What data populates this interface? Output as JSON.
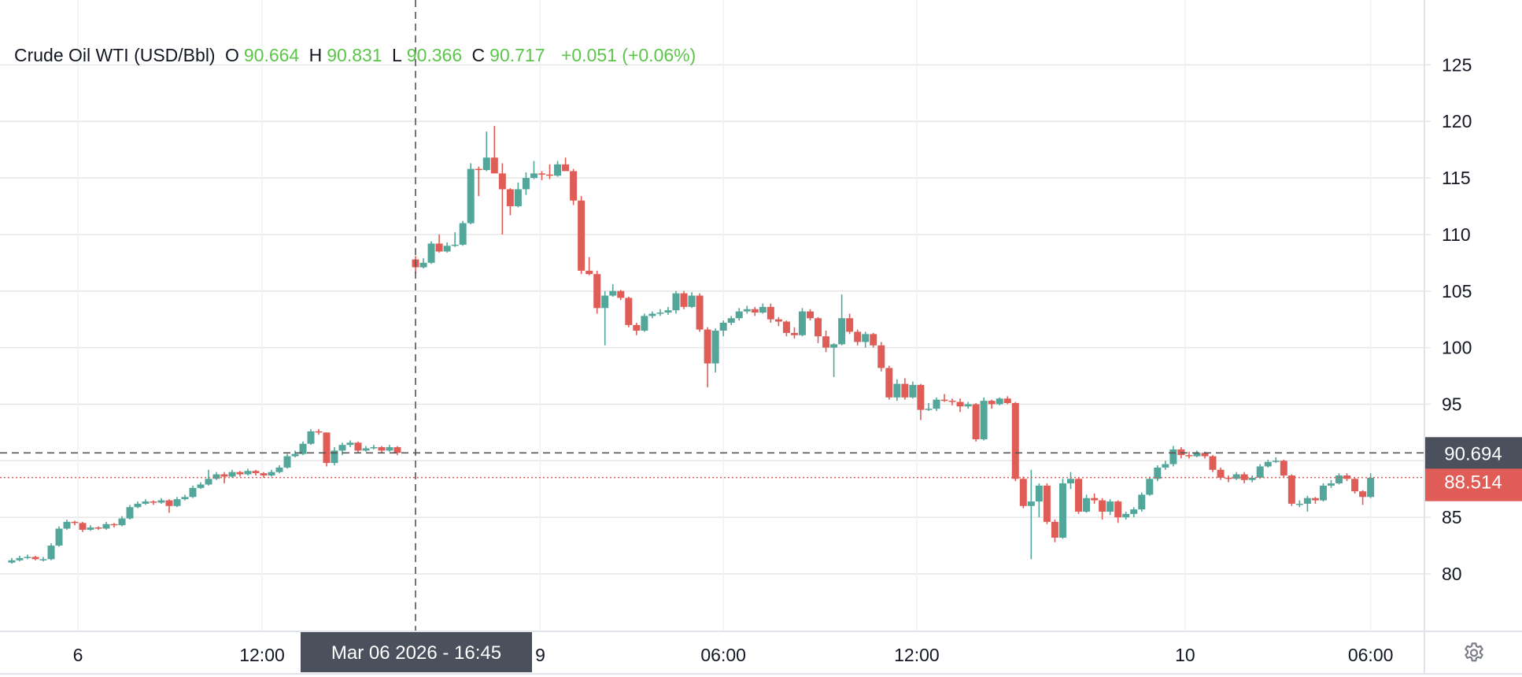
{
  "legend": {
    "symbol": "Crude Oil WTI (USD/Bbl)",
    "o_label": "O",
    "o": "90.664",
    "h_label": "H",
    "h": "90.831",
    "l_label": "L",
    "l": "90.366",
    "c_label": "C",
    "c": "90.717",
    "change": "+0.051 (+0.06%)"
  },
  "crosshair": {
    "price": "90.694",
    "time": "Mar 06 2026 - 16:45",
    "price_value": 90.694
  },
  "last_price": {
    "label": "88.514",
    "value": 88.514
  },
  "settings_icon": "gear-icon",
  "colors": {
    "up": "#53a69a",
    "down": "#e05d57",
    "legend_values": "#5cc64a",
    "crosshair_label": "#4a505c",
    "last_price": "#e05d57"
  },
  "chart_data": {
    "type": "candlestick",
    "title": "Crude Oil WTI (USD/Bbl)",
    "ylim": [
      75,
      129
    ],
    "y_ticks": [
      80,
      85,
      90,
      95,
      100,
      105,
      110,
      115,
      120,
      125
    ],
    "y_tick_labels": [
      "80",
      "85",
      "",
      "95",
      "100",
      "105",
      "110",
      "115",
      "120",
      "125"
    ],
    "grid": true,
    "x_tick_labels": [
      {
        "label": "6",
        "segment": 0,
        "index": 8.4
      },
      {
        "label": "12:00",
        "segment": 0,
        "index": 31.8
      },
      {
        "label": "9",
        "segment": 1,
        "index": 15.8
      },
      {
        "label": "06:00",
        "segment": 1,
        "index": 39
      },
      {
        "label": "12:00",
        "segment": 1,
        "index": 63.5
      },
      {
        "label": "10",
        "segment": 1,
        "index": 97.5
      },
      {
        "label": "06:00",
        "segment": 1,
        "index": 121
      }
    ],
    "crosshair_at": {
      "segment": 0,
      "index": 51.3
    },
    "segments": [
      [
        [
          81.0,
          81.4,
          80.9,
          81.2
        ],
        [
          81.2,
          81.6,
          81.1,
          81.4
        ],
        [
          81.4,
          81.7,
          81.3,
          81.5
        ],
        [
          81.5,
          81.6,
          81.2,
          81.3
        ],
        [
          81.3,
          81.5,
          81.1,
          81.3
        ],
        [
          81.3,
          82.7,
          81.2,
          82.5
        ],
        [
          82.5,
          84.2,
          82.4,
          84.0
        ],
        [
          84.0,
          84.8,
          83.9,
          84.6
        ],
        [
          84.6,
          84.7,
          84.3,
          84.5
        ],
        [
          84.5,
          84.6,
          83.7,
          83.9
        ],
        [
          83.9,
          84.3,
          83.8,
          84.1
        ],
        [
          84.1,
          84.2,
          83.9,
          84.0
        ],
        [
          84.0,
          84.6,
          83.9,
          84.4
        ],
        [
          84.4,
          84.5,
          84.1,
          84.3
        ],
        [
          84.3,
          85.1,
          84.2,
          84.9
        ],
        [
          84.9,
          86.1,
          84.8,
          85.9
        ],
        [
          85.9,
          86.4,
          85.8,
          86.2
        ],
        [
          86.2,
          86.6,
          86.1,
          86.4
        ],
        [
          86.4,
          86.5,
          86.1,
          86.3
        ],
        [
          86.3,
          86.7,
          86.2,
          86.5
        ],
        [
          86.5,
          86.6,
          85.4,
          86.0
        ],
        [
          86.0,
          86.8,
          85.9,
          86.6
        ],
        [
          86.6,
          87.0,
          86.5,
          86.8
        ],
        [
          86.8,
          87.8,
          86.7,
          87.6
        ],
        [
          87.6,
          88.1,
          87.5,
          87.9
        ],
        [
          87.9,
          89.2,
          87.8,
          88.4
        ],
        [
          88.4,
          89.0,
          88.3,
          88.8
        ],
        [
          88.8,
          89.0,
          88.0,
          88.6
        ],
        [
          88.6,
          89.2,
          88.5,
          89.0
        ],
        [
          89.0,
          89.1,
          88.6,
          88.8
        ],
        [
          88.8,
          89.3,
          88.7,
          89.1
        ],
        [
          89.1,
          89.2,
          88.7,
          88.9
        ],
        [
          88.9,
          89.0,
          88.5,
          88.7
        ],
        [
          88.7,
          89.2,
          88.6,
          89.0
        ],
        [
          89.0,
          89.6,
          88.9,
          89.4
        ],
        [
          89.4,
          90.6,
          89.3,
          90.4
        ],
        [
          90.4,
          90.9,
          90.3,
          90.6
        ],
        [
          90.6,
          91.7,
          90.5,
          91.5
        ],
        [
          91.5,
          92.8,
          91.4,
          92.6
        ],
        [
          92.6,
          92.8,
          92.3,
          92.5
        ],
        [
          92.5,
          92.5,
          89.5,
          89.8
        ],
        [
          89.8,
          91.2,
          89.6,
          90.9
        ],
        [
          90.9,
          91.6,
          90.5,
          91.4
        ],
        [
          91.4,
          91.8,
          91.2,
          91.6
        ],
        [
          91.6,
          91.7,
          90.7,
          90.9
        ],
        [
          90.9,
          91.3,
          90.8,
          91.1
        ],
        [
          91.1,
          91.4,
          91.0,
          91.2
        ],
        [
          91.2,
          91.3,
          90.7,
          90.9
        ],
        [
          90.9,
          91.4,
          90.8,
          91.2
        ],
        [
          91.2,
          91.3,
          90.5,
          90.7
        ]
      ],
      [
        [
          107.8,
          108.1,
          106.6,
          107.1
        ],
        [
          107.1,
          107.9,
          107.0,
          107.5
        ],
        [
          107.5,
          109.4,
          107.4,
          109.2
        ],
        [
          109.2,
          110.0,
          108.4,
          108.5
        ],
        [
          108.5,
          109.3,
          108.4,
          109.0
        ],
        [
          109.0,
          110.2,
          108.9,
          109.1
        ],
        [
          109.1,
          111.2,
          109.0,
          111.0
        ],
        [
          111.0,
          116.3,
          110.9,
          115.8
        ],
        [
          115.8,
          116.0,
          113.4,
          115.7
        ],
        [
          115.7,
          119.1,
          115.6,
          116.8
        ],
        [
          116.8,
          119.6,
          115.4,
          115.4
        ],
        [
          115.4,
          116.3,
          110.0,
          114.0
        ],
        [
          114.0,
          114.1,
          111.7,
          112.5
        ],
        [
          112.5,
          114.6,
          112.4,
          114.0
        ],
        [
          114.0,
          115.5,
          113.5,
          115.0
        ],
        [
          115.0,
          116.5,
          114.9,
          115.4
        ],
        [
          115.4,
          115.6,
          114.8,
          115.3
        ],
        [
          115.3,
          116.2,
          114.9,
          115.2
        ],
        [
          115.2,
          116.5,
          115.1,
          116.2
        ],
        [
          116.2,
          116.8,
          115.8,
          115.6
        ],
        [
          115.6,
          115.8,
          112.6,
          113.0
        ],
        [
          113.0,
          113.4,
          106.5,
          106.8
        ],
        [
          106.8,
          108.0,
          106.4,
          106.5
        ],
        [
          106.5,
          106.8,
          103.0,
          103.5
        ],
        [
          103.5,
          105.0,
          100.2,
          104.6
        ],
        [
          104.6,
          105.6,
          104.5,
          105.0
        ],
        [
          105.0,
          105.1,
          104.2,
          104.4
        ],
        [
          104.4,
          104.5,
          101.8,
          102.0
        ],
        [
          102.0,
          102.2,
          101.1,
          101.5
        ],
        [
          101.5,
          103.0,
          101.4,
          102.8
        ],
        [
          102.8,
          103.2,
          102.6,
          103.0
        ],
        [
          103.0,
          103.4,
          102.8,
          103.1
        ],
        [
          103.1,
          103.6,
          102.9,
          103.3
        ],
        [
          103.3,
          105.0,
          103.0,
          104.8
        ],
        [
          104.8,
          105.0,
          103.4,
          103.6
        ],
        [
          103.6,
          104.9,
          103.5,
          104.6
        ],
        [
          104.6,
          104.8,
          101.4,
          101.6
        ],
        [
          101.6,
          101.8,
          96.5,
          98.6
        ],
        [
          98.6,
          101.7,
          97.8,
          101.5
        ],
        [
          101.5,
          102.4,
          101.0,
          102.2
        ],
        [
          102.2,
          102.8,
          102.0,
          102.6
        ],
        [
          102.6,
          103.5,
          102.4,
          103.2
        ],
        [
          103.2,
          103.7,
          103.0,
          103.4
        ],
        [
          103.4,
          103.6,
          102.8,
          103.1
        ],
        [
          103.1,
          103.9,
          103.0,
          103.6
        ],
        [
          103.6,
          103.9,
          102.2,
          102.5
        ],
        [
          102.5,
          102.7,
          101.9,
          102.3
        ],
        [
          102.3,
          102.4,
          101.0,
          101.3
        ],
        [
          101.3,
          101.8,
          100.8,
          101.1
        ],
        [
          101.1,
          103.5,
          101.0,
          103.2
        ],
        [
          103.2,
          103.4,
          102.4,
          102.6
        ],
        [
          102.6,
          102.7,
          100.4,
          101.0
        ],
        [
          101.0,
          101.5,
          99.6,
          100.0
        ],
        [
          100.0,
          100.4,
          97.4,
          100.3
        ],
        [
          100.3,
          104.7,
          100.2,
          102.6
        ],
        [
          102.6,
          103.0,
          101.2,
          101.4
        ],
        [
          101.4,
          101.6,
          100.2,
          100.5
        ],
        [
          100.5,
          101.4,
          100.0,
          101.2
        ],
        [
          101.2,
          101.3,
          100.0,
          100.2
        ],
        [
          100.2,
          100.5,
          97.9,
          98.2
        ],
        [
          98.2,
          98.4,
          95.4,
          95.6
        ],
        [
          95.6,
          97.2,
          95.3,
          96.8
        ],
        [
          96.8,
          97.3,
          95.4,
          95.6
        ],
        [
          95.6,
          97.0,
          95.5,
          96.7
        ],
        [
          96.7,
          96.8,
          93.6,
          94.5
        ],
        [
          94.5,
          95.1,
          94.4,
          94.6
        ],
        [
          94.6,
          95.6,
          94.4,
          95.4
        ],
        [
          95.4,
          95.9,
          95.2,
          95.3
        ],
        [
          95.3,
          95.5,
          94.9,
          95.2
        ],
        [
          95.2,
          95.5,
          94.3,
          94.8
        ],
        [
          94.8,
          95.2,
          94.6,
          95.0
        ],
        [
          95.0,
          95.1,
          91.7,
          91.9
        ],
        [
          91.9,
          95.6,
          91.8,
          95.3
        ],
        [
          95.3,
          95.4,
          94.6,
          95.0
        ],
        [
          95.0,
          95.6,
          94.9,
          95.5
        ],
        [
          95.5,
          95.7,
          95.0,
          95.1
        ],
        [
          95.1,
          95.2,
          88.2,
          88.4
        ],
        [
          88.4,
          88.6,
          85.8,
          86.0
        ],
        [
          86.0,
          89.2,
          81.3,
          86.4
        ],
        [
          86.4,
          88.0,
          85.0,
          87.8
        ],
        [
          87.8,
          88.0,
          84.4,
          84.6
        ],
        [
          84.6,
          84.8,
          82.8,
          83.2
        ],
        [
          83.2,
          88.4,
          83.1,
          88.0
        ],
        [
          88.0,
          89.0,
          87.5,
          88.4
        ],
        [
          88.4,
          88.5,
          85.3,
          85.5
        ],
        [
          85.5,
          87.0,
          85.4,
          86.7
        ],
        [
          86.7,
          87.1,
          86.2,
          86.5
        ],
        [
          86.5,
          86.7,
          84.8,
          85.5
        ],
        [
          85.5,
          86.6,
          85.2,
          86.4
        ],
        [
          86.4,
          86.5,
          84.5,
          85.0
        ],
        [
          85.0,
          85.5,
          84.8,
          85.3
        ],
        [
          85.3,
          85.9,
          85.0,
          85.7
        ],
        [
          85.7,
          87.2,
          85.5,
          87.0
        ],
        [
          87.0,
          88.6,
          86.9,
          88.4
        ],
        [
          88.4,
          89.6,
          88.2,
          89.4
        ],
        [
          89.4,
          90.0,
          89.2,
          89.7
        ],
        [
          89.7,
          91.3,
          89.5,
          91.0
        ],
        [
          91.0,
          91.2,
          90.2,
          90.5
        ],
        [
          90.5,
          90.8,
          90.2,
          90.4
        ],
        [
          90.4,
          90.9,
          90.3,
          90.7
        ],
        [
          90.7,
          90.8,
          90.2,
          90.4
        ],
        [
          90.4,
          90.5,
          89.0,
          89.2
        ],
        [
          89.2,
          89.4,
          88.3,
          88.5
        ],
        [
          88.5,
          88.7,
          88.1,
          88.4
        ],
        [
          88.4,
          89.0,
          88.3,
          88.8
        ],
        [
          88.8,
          89.0,
          88.0,
          88.3
        ],
        [
          88.3,
          88.7,
          88.1,
          88.5
        ],
        [
          88.5,
          89.7,
          88.4,
          89.5
        ],
        [
          89.5,
          90.1,
          89.4,
          89.9
        ],
        [
          89.9,
          90.3,
          89.8,
          90.0
        ],
        [
          90.0,
          90.1,
          88.5,
          88.7
        ],
        [
          88.7,
          88.8,
          86.0,
          86.2
        ],
        [
          86.2,
          86.5,
          85.9,
          86.2
        ],
        [
          86.2,
          86.9,
          85.5,
          86.7
        ],
        [
          86.7,
          86.8,
          86.2,
          86.5
        ],
        [
          86.5,
          88.0,
          86.4,
          87.8
        ],
        [
          87.8,
          88.3,
          87.6,
          88.0
        ],
        [
          88.0,
          88.9,
          87.9,
          88.7
        ],
        [
          88.7,
          88.9,
          88.2,
          88.4
        ],
        [
          88.4,
          88.5,
          87.1,
          87.3
        ],
        [
          87.3,
          87.4,
          86.1,
          86.8
        ],
        [
          86.8,
          88.9,
          86.7,
          88.5
        ]
      ]
    ]
  }
}
